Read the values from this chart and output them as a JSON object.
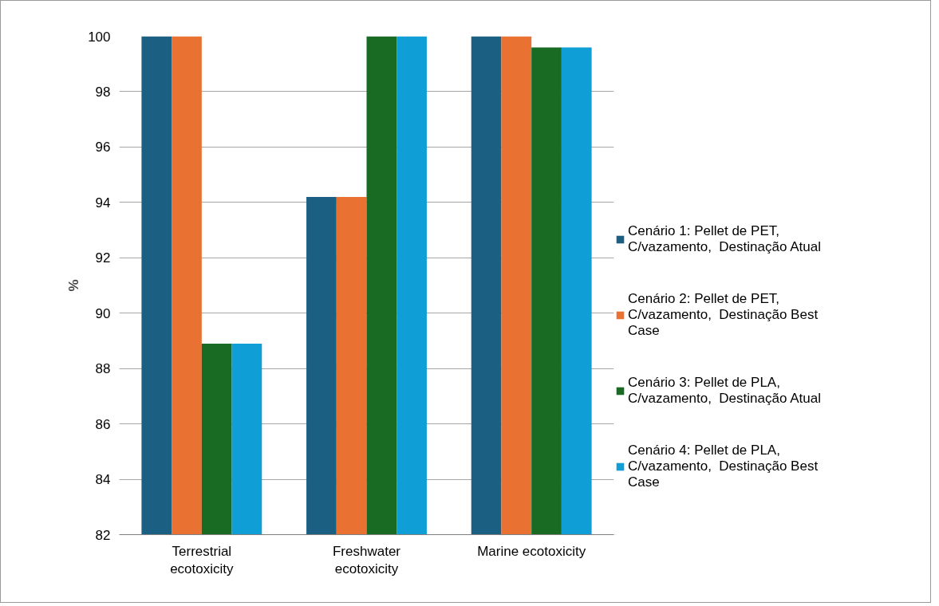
{
  "chart_data": {
    "type": "bar",
    "ylabel": "%",
    "categories": [
      "Terrestrial ecotoxicity",
      "Freshwater ecotoxicity",
      "Marine ecotoxicity"
    ],
    "series": [
      {
        "name": "Cenário 1: Pellet de PET, C/vazamento,  Destinação Atual",
        "color": "#1b5f82",
        "values": [
          100,
          94.2,
          100
        ]
      },
      {
        "name": "Cenário 2: Pellet de PET, C/vazamento,  Destinação Best Case",
        "color": "#e97132",
        "values": [
          100,
          94.2,
          100
        ]
      },
      {
        "name": "Cenário 3: Pellet de PLA, C/vazamento,  Destinação Atual",
        "color": "#196b24",
        "values": [
          88.9,
          100,
          99.6
        ]
      },
      {
        "name": "Cenário 4: Pellet de PLA, C/vazamento,  Destinação Best Case",
        "color": "#0f9ed5",
        "values": [
          88.9,
          100,
          99.6
        ]
      }
    ],
    "ylim": [
      82,
      100
    ],
    "yticks": [
      82,
      84,
      86,
      88,
      90,
      92,
      94,
      96,
      98,
      100
    ],
    "grid": "y",
    "legend": "right"
  }
}
